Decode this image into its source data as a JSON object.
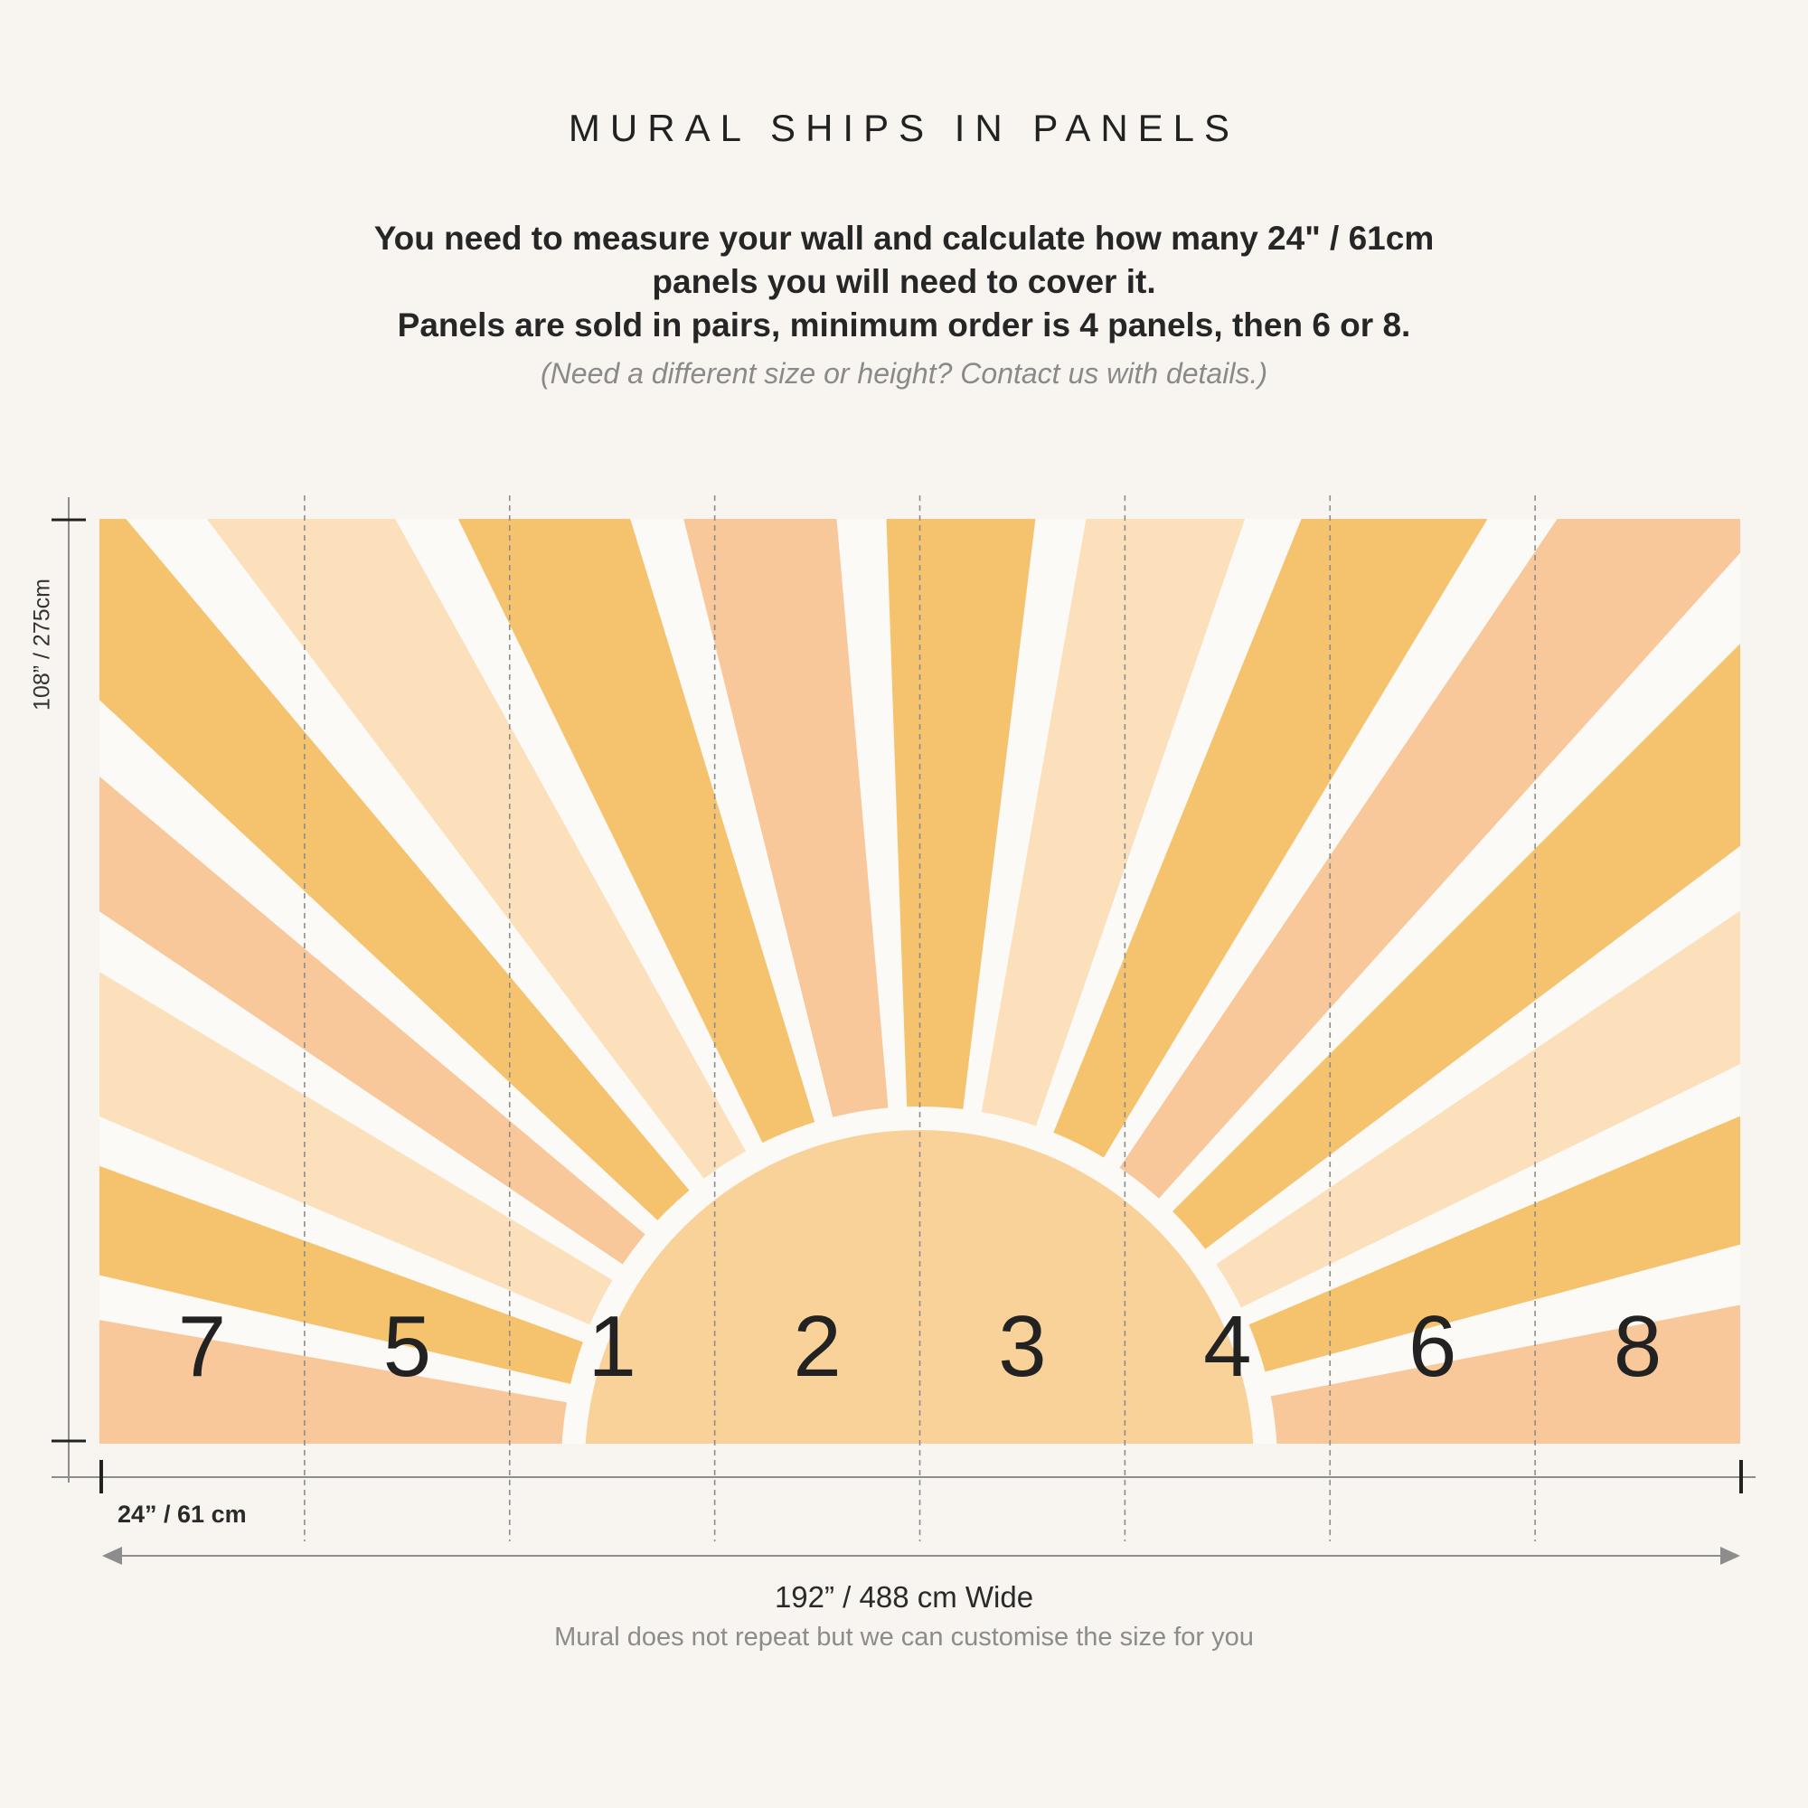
{
  "title": "MURAL SHIPS IN PANELS",
  "intro": {
    "line1": "You need to measure your wall and calculate how many 24\" / 61cm",
    "line2": "panels you will need to cover it.",
    "line3": "Panels are sold in pairs, minimum order is 4 panels, then 6 or 8."
  },
  "note": "(Need a different size or height? Contact us with details.)",
  "height_label": "108” / 275cm",
  "panel_width_label": "24” / 61 cm",
  "total_width_label": "192” / 488 cm Wide",
  "sub_note": "Mural does not repeat but we can customise the size for you",
  "panels": [
    "7",
    "5",
    "1",
    "2",
    "3",
    "4",
    "6",
    "8"
  ],
  "colors": {
    "background": "#f8f5f0",
    "ray_dark": "#f5c36e",
    "ray_peach": "#f8c89a",
    "ray_light": "#fbe0bb",
    "sun": "#f9d29a",
    "gap": "#fbfaf7",
    "guide_line": "#8d8d8d"
  }
}
